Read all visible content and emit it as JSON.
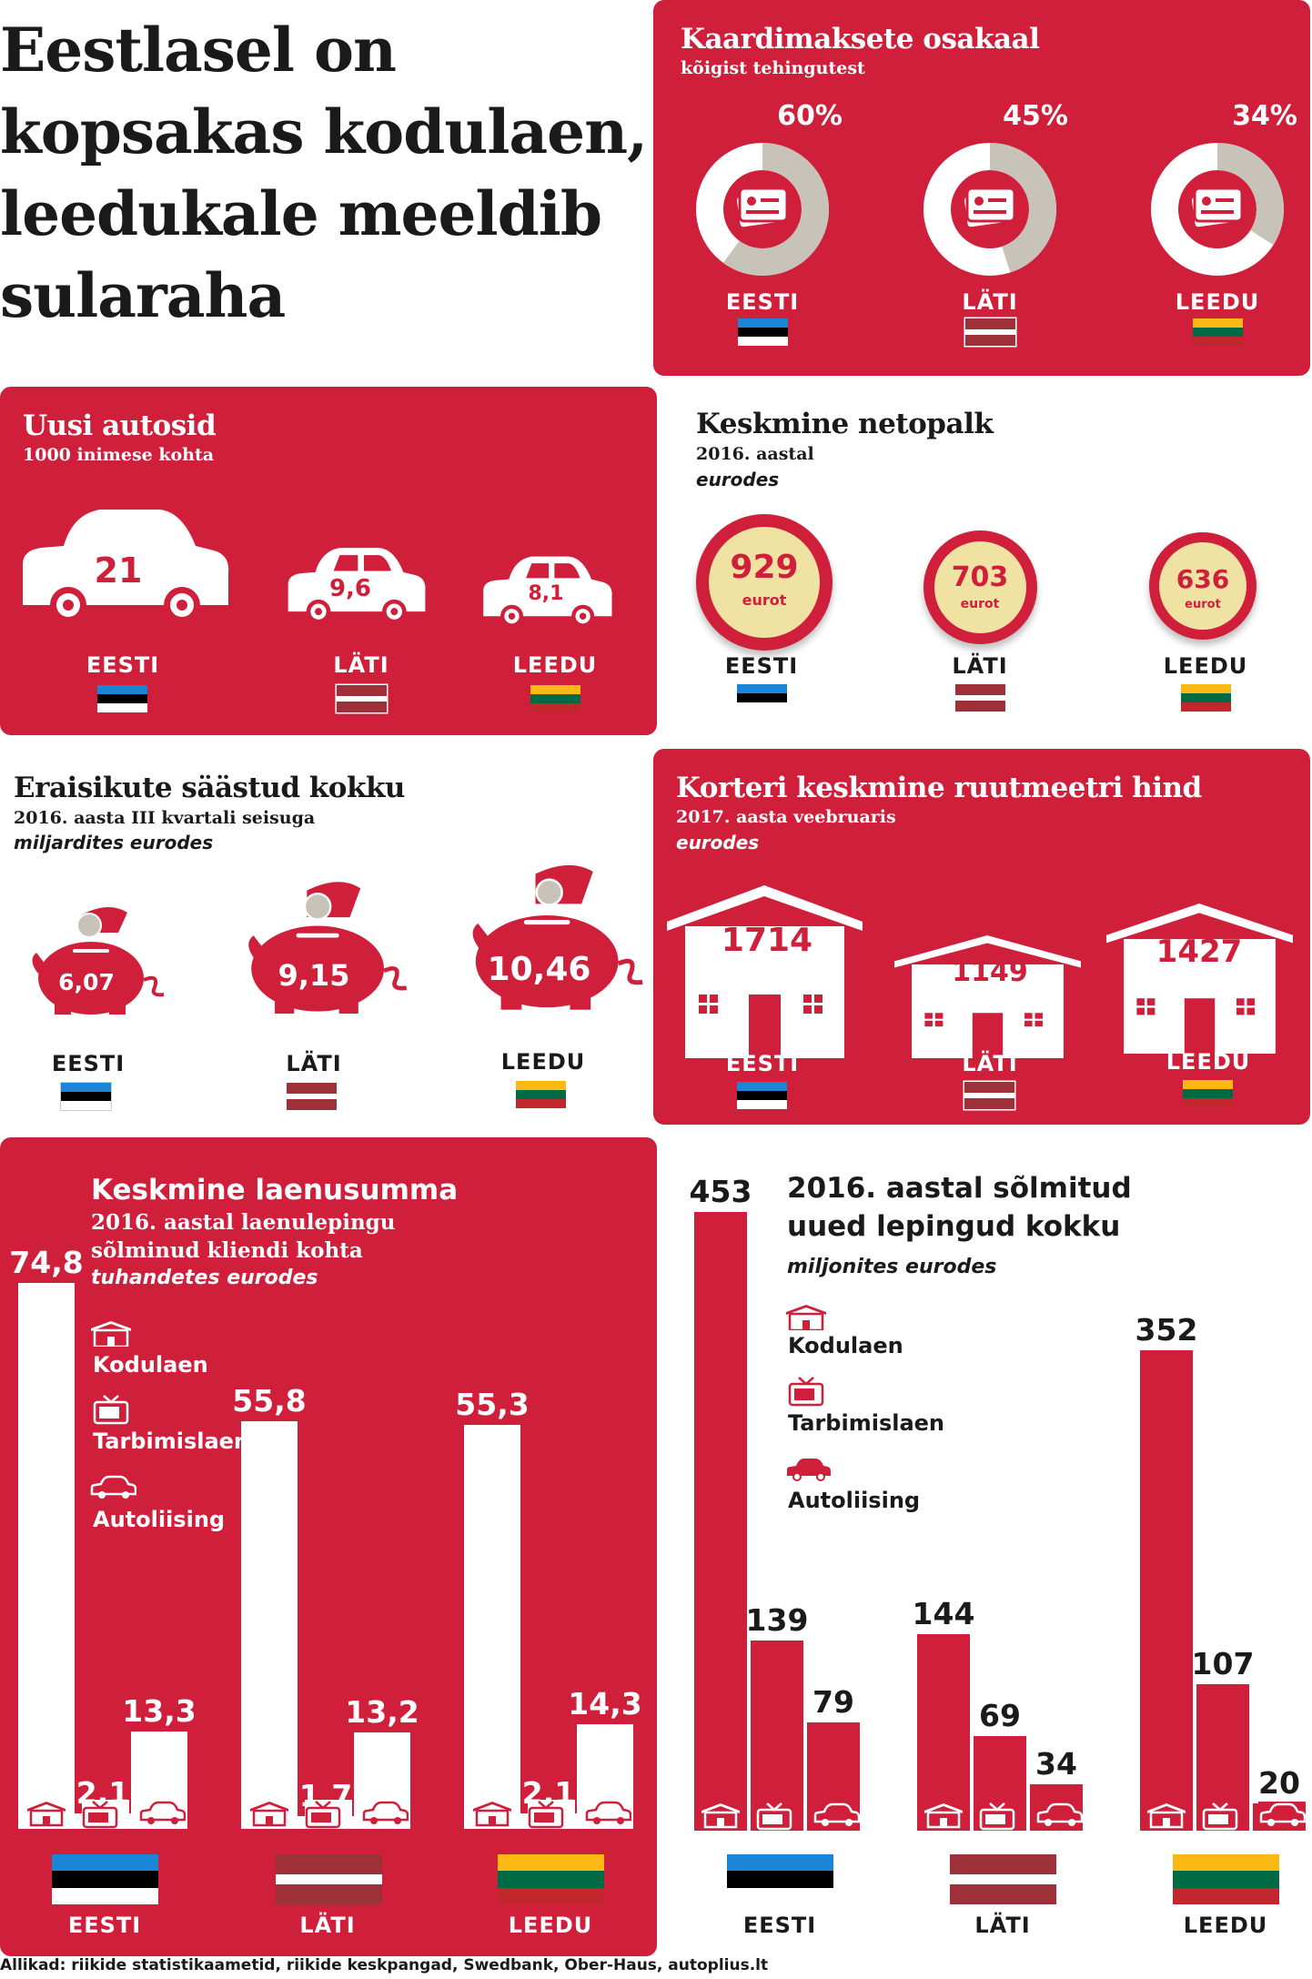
{
  "headline": [
    "Eestlasel on",
    "kopsakas kodulaen,",
    "leedukale meeldib",
    "sularaha"
  ],
  "countries": {
    "ee": "EESTI",
    "lv": "LÄTI",
    "lt": "LEEDU"
  },
  "card_payments": {
    "title": "Kaardimaksete osakaal",
    "subtitle": "kõigist tehingutest",
    "items": [
      {
        "country": "EESTI",
        "label": "60%",
        "value": 60
      },
      {
        "country": "LÄTI",
        "label": "45%",
        "value": 45
      },
      {
        "country": "LEEDU",
        "label": "34%",
        "value": 34
      }
    ]
  },
  "new_cars": {
    "title": "Uusi autosid",
    "subtitle": "1000 inimese kohta",
    "items": [
      {
        "country": "EESTI",
        "value": "21"
      },
      {
        "country": "LÄTI",
        "value": "9,6"
      },
      {
        "country": "LEEDU",
        "value": "8,1"
      }
    ]
  },
  "net_salary": {
    "title": "Keskmine netopalk",
    "subtitle": "2016. aastal",
    "unit": "eurodes",
    "coin_unit": "eurot",
    "items": [
      {
        "country": "EESTI",
        "value": "929"
      },
      {
        "country": "LÄTI",
        "value": "703"
      },
      {
        "country": "LEEDU",
        "value": "636"
      }
    ]
  },
  "savings": {
    "title": "Eraisikute säästud kokku",
    "subtitle": "2016. aasta III kvartali seisuga",
    "unit": "miljardites eurodes",
    "items": [
      {
        "country": "EESTI",
        "value": "6,07"
      },
      {
        "country": "LÄTI",
        "value": "9,15"
      },
      {
        "country": "LEEDU",
        "value": "10,46"
      }
    ]
  },
  "apartment_price": {
    "title": "Korteri keskmine ruutmeetri hind",
    "subtitle": "2017. aasta veebruaris",
    "unit": "eurodes",
    "items": [
      {
        "country": "EESTI",
        "value": "1714"
      },
      {
        "country": "LÄTI",
        "value": "1149"
      },
      {
        "country": "LEEDU",
        "value": "1427"
      }
    ]
  },
  "loan_average": {
    "title": "Keskmine laenusumma",
    "subtitle_1": "2016. aastal laenulepingu",
    "subtitle_2": "sõlminud kliendi kohta",
    "unit": "tuhandetes eurodes",
    "legend": [
      "Kodulaen",
      "Tarbimislaen",
      "Autoliising"
    ]
  },
  "new_contracts": {
    "title_1": "2016. aastal sõlmitud",
    "title_2": "uued lepingud kokku",
    "unit": "miljonites eurodes",
    "legend": [
      "Kodulaen",
      "Tarbimislaen",
      "Autoliising"
    ]
  },
  "source": "Allikad: riikide statistikaametid, riikide keskpangad, Swedbank, Ober-Haus, autoplius.lt",
  "colors": {
    "accent": "#cf1f3b",
    "donut_track": "#ffffff",
    "donut_fill": "#c8c3b8",
    "coin": "#efe2a2"
  },
  "chart_data": [
    {
      "type": "bar",
      "title": "Keskmine laenusumma",
      "categories": [
        "EESTI",
        "LÄTI",
        "LEEDU"
      ],
      "ylabel": "tuhandetes eurodes",
      "series": [
        {
          "name": "Kodulaen",
          "values": [
            74.8,
            55.8,
            55.3
          ],
          "labels": [
            "74,8",
            "55,8",
            "55,3"
          ]
        },
        {
          "name": "Tarbimislaen",
          "values": [
            2.1,
            1.7,
            2.1
          ],
          "labels": [
            "2,1",
            "1,7",
            "2,1"
          ]
        },
        {
          "name": "Autoliising",
          "values": [
            13.3,
            13.2,
            14.3
          ],
          "labels": [
            "13,3",
            "13,2",
            "14,3"
          ]
        }
      ]
    },
    {
      "type": "bar",
      "title": "2016. aastal sõlmitud uued lepingud kokku",
      "categories": [
        "EESTI",
        "LÄTI",
        "LEEDU"
      ],
      "ylabel": "miljonites eurodes",
      "series": [
        {
          "name": "Kodulaen",
          "values": [
            453,
            144,
            352
          ],
          "labels": [
            "453",
            "144",
            "352"
          ]
        },
        {
          "name": "Tarbimislaen",
          "values": [
            139,
            69,
            107
          ],
          "labels": [
            "139",
            "69",
            "107"
          ]
        },
        {
          "name": "Autoliising",
          "values": [
            79,
            34,
            20
          ],
          "labels": [
            "79",
            "34",
            "20"
          ]
        }
      ]
    }
  ]
}
